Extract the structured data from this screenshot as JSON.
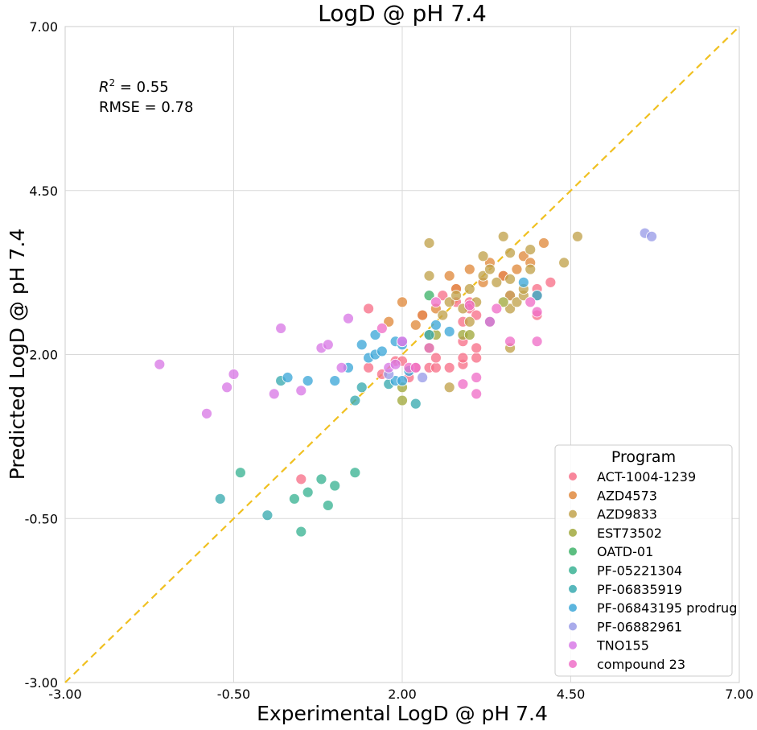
{
  "chart_data": {
    "type": "scatter",
    "title": "LogD @ pH 7.4",
    "xlabel": "Experimental LogD @ pH 7.4",
    "ylabel": "Predicted LogD @ pH 7.4",
    "xlim": [
      -3.0,
      7.0
    ],
    "ylim": [
      -3.0,
      7.0
    ],
    "xticks": [
      -3.0,
      -0.5,
      2.0,
      4.5,
      7.0
    ],
    "yticks": [
      -3.0,
      -0.5,
      2.0,
      4.5,
      7.0
    ],
    "xtick_labels": [
      "-3.00",
      "-0.50",
      "2.00",
      "4.50",
      "7.00"
    ],
    "ytick_labels": [
      "-3.00",
      "-0.50",
      "2.00",
      "4.50",
      "7.00"
    ],
    "grid": true,
    "annotations": {
      "r2_label": "R",
      "r2_sup": "2",
      "r2_value": " = 0.55",
      "rmse": "RMSE = 0.78"
    },
    "identity_line": {
      "color": "#f0c020",
      "style": "dashed"
    },
    "legend": {
      "title": "Program",
      "position": "bottom-right"
    },
    "series": [
      {
        "name": "ACT-1004-1239",
        "color": "#f77189",
        "points": [
          [
            0.5,
            0.1
          ],
          [
            1.5,
            2.7
          ],
          [
            1.5,
            1.8
          ],
          [
            1.7,
            1.7
          ],
          [
            1.9,
            1.9
          ],
          [
            2.0,
            1.9
          ],
          [
            2.1,
            1.65
          ],
          [
            2.2,
            1.8
          ],
          [
            2.3,
            2.6
          ],
          [
            2.4,
            1.8
          ],
          [
            2.5,
            1.8
          ],
          [
            2.5,
            1.95
          ],
          [
            2.6,
            2.9
          ],
          [
            2.7,
            1.8
          ],
          [
            2.8,
            3.0
          ],
          [
            2.8,
            2.8
          ],
          [
            2.9,
            2.5
          ],
          [
            2.9,
            1.85
          ],
          [
            2.9,
            1.95
          ],
          [
            2.9,
            2.2
          ],
          [
            3.0,
            2.8
          ],
          [
            3.0,
            2.7
          ],
          [
            3.1,
            2.6
          ],
          [
            3.1,
            1.95
          ],
          [
            3.1,
            2.1
          ],
          [
            3.5,
            3.2
          ],
          [
            3.6,
            2.9
          ],
          [
            4.0,
            2.6
          ],
          [
            4.0,
            3.0
          ],
          [
            4.0,
            2.9
          ],
          [
            4.2,
            3.1
          ]
        ]
      },
      {
        "name": "AZD4573",
        "color": "#e08a3e",
        "points": [
          [
            1.8,
            2.5
          ],
          [
            2.0,
            2.8
          ],
          [
            2.2,
            2.45
          ],
          [
            2.3,
            2.6
          ],
          [
            2.5,
            2.7
          ],
          [
            2.7,
            3.2
          ],
          [
            2.8,
            3.0
          ],
          [
            3.0,
            3.3
          ],
          [
            3.2,
            3.1
          ],
          [
            3.3,
            3.4
          ],
          [
            3.5,
            3.2
          ],
          [
            3.7,
            3.3
          ],
          [
            3.8,
            3.5
          ],
          [
            3.9,
            3.4
          ],
          [
            4.1,
            3.7
          ]
        ]
      },
      {
        "name": "AZD9833",
        "color": "#c2a34d",
        "points": [
          [
            2.4,
            3.7
          ],
          [
            2.4,
            3.2
          ],
          [
            2.6,
            2.6
          ],
          [
            2.7,
            2.8
          ],
          [
            2.8,
            2.9
          ],
          [
            2.9,
            2.7
          ],
          [
            3.0,
            3.0
          ],
          [
            3.0,
            2.5
          ],
          [
            3.1,
            2.8
          ],
          [
            3.2,
            3.5
          ],
          [
            3.2,
            3.2
          ],
          [
            3.3,
            3.3
          ],
          [
            3.4,
            3.1
          ],
          [
            3.5,
            3.8
          ],
          [
            3.6,
            3.55
          ],
          [
            3.6,
            3.15
          ],
          [
            3.6,
            2.9
          ],
          [
            3.6,
            2.7
          ],
          [
            3.7,
            2.8
          ],
          [
            3.8,
            2.9
          ],
          [
            3.8,
            3.0
          ],
          [
            3.9,
            3.6
          ],
          [
            3.9,
            3.3
          ],
          [
            4.0,
            2.9
          ],
          [
            2.7,
            1.5
          ],
          [
            3.6,
            2.1
          ],
          [
            4.4,
            3.4
          ],
          [
            4.6,
            3.8
          ]
        ]
      },
      {
        "name": "EST73502",
        "color": "#a1a93e",
        "points": [
          [
            2.0,
            1.5
          ],
          [
            2.0,
            1.3
          ],
          [
            2.4,
            2.1
          ],
          [
            2.4,
            2.3
          ],
          [
            2.5,
            2.3
          ],
          [
            2.9,
            2.3
          ],
          [
            3.0,
            2.3
          ],
          [
            3.5,
            2.8
          ]
        ]
      },
      {
        "name": "OATD-01",
        "color": "#40b36a",
        "points": [
          [
            2.4,
            2.9
          ]
        ]
      },
      {
        "name": "PF-05221304",
        "color": "#3bb394",
        "points": [
          [
            -0.4,
            0.2
          ],
          [
            0.4,
            -0.2
          ],
          [
            0.5,
            -0.7
          ],
          [
            0.6,
            -0.1
          ],
          [
            0.8,
            0.1
          ],
          [
            0.9,
            -0.3
          ],
          [
            1.0,
            0.0
          ],
          [
            1.3,
            0.2
          ]
        ]
      },
      {
        "name": "PF-06835919",
        "color": "#3aaab0",
        "points": [
          [
            -0.7,
            -0.2
          ],
          [
            0.0,
            -0.45
          ],
          [
            0.2,
            1.6
          ],
          [
            1.3,
            1.3
          ],
          [
            1.4,
            1.5
          ],
          [
            1.8,
            1.55
          ],
          [
            2.2,
            1.25
          ],
          [
            2.4,
            2.3
          ]
        ]
      },
      {
        "name": "PF-06843195 prodrug",
        "color": "#3fa8d8",
        "points": [
          [
            0.3,
            1.65
          ],
          [
            0.6,
            1.6
          ],
          [
            1.0,
            1.6
          ],
          [
            1.2,
            1.8
          ],
          [
            1.4,
            2.15
          ],
          [
            1.5,
            1.95
          ],
          [
            1.6,
            2.0
          ],
          [
            1.6,
            2.3
          ],
          [
            1.7,
            2.05
          ],
          [
            1.9,
            2.2
          ],
          [
            2.0,
            2.15
          ],
          [
            1.9,
            1.6
          ],
          [
            2.0,
            1.6
          ],
          [
            2.1,
            1.75
          ],
          [
            2.5,
            2.45
          ],
          [
            2.7,
            2.35
          ],
          [
            3.3,
            2.5
          ],
          [
            3.8,
            3.1
          ],
          [
            4.0,
            2.9
          ]
        ]
      },
      {
        "name": "PF-06882961",
        "color": "#9a9ce8",
        "points": [
          [
            1.8,
            1.7
          ],
          [
            2.0,
            2.2
          ],
          [
            2.3,
            1.65
          ],
          [
            5.6,
            3.85
          ],
          [
            5.7,
            3.8
          ]
        ]
      },
      {
        "name": "TNO155",
        "color": "#d87ae6",
        "points": [
          [
            -1.6,
            1.85
          ],
          [
            -0.9,
            1.1
          ],
          [
            -0.6,
            1.5
          ],
          [
            -0.5,
            1.7
          ],
          [
            0.1,
            1.4
          ],
          [
            0.2,
            2.4
          ],
          [
            0.5,
            1.45
          ],
          [
            0.8,
            2.1
          ],
          [
            0.9,
            2.15
          ],
          [
            1.1,
            1.8
          ],
          [
            1.2,
            2.55
          ],
          [
            1.8,
            1.8
          ],
          [
            1.9,
            1.85
          ],
          [
            2.0,
            2.2
          ]
        ]
      },
      {
        "name": "compound 23",
        "color": "#ef70c8",
        "points": [
          [
            1.7,
            2.4
          ],
          [
            2.1,
            1.8
          ],
          [
            2.2,
            1.8
          ],
          [
            2.4,
            2.1
          ],
          [
            2.5,
            2.8
          ],
          [
            2.9,
            1.55
          ],
          [
            3.0,
            2.75
          ],
          [
            3.1,
            1.4
          ],
          [
            3.1,
            1.65
          ],
          [
            3.3,
            2.5
          ],
          [
            3.4,
            2.7
          ],
          [
            3.6,
            2.2
          ],
          [
            3.9,
            2.8
          ],
          [
            4.0,
            2.65
          ],
          [
            4.0,
            2.2
          ]
        ]
      }
    ]
  }
}
